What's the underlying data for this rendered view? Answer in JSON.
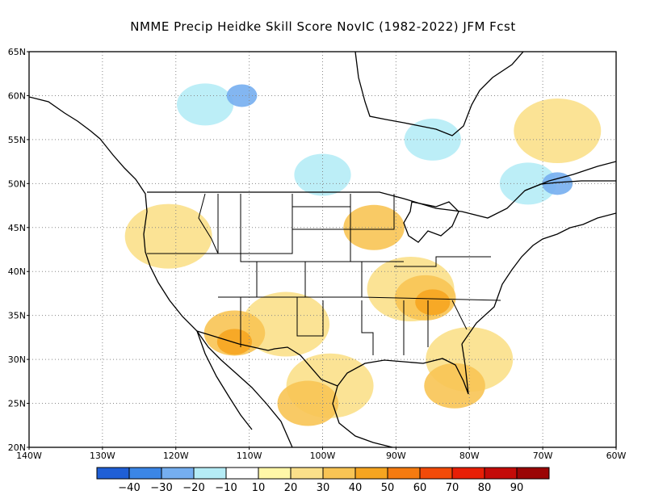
{
  "title": "NMME Precip Heidke Skill Score NovIC (1982-2022) JFM Fcst",
  "map": {
    "lon_range": [
      -140,
      -60
    ],
    "lat_range": [
      20,
      65
    ],
    "lat_ticks": [
      {
        "value": 65,
        "label": "65N"
      },
      {
        "value": 60,
        "label": "60N"
      },
      {
        "value": 55,
        "label": "55N"
      },
      {
        "value": 50,
        "label": "50N"
      },
      {
        "value": 45,
        "label": "45N"
      },
      {
        "value": 40,
        "label": "40N"
      },
      {
        "value": 35,
        "label": "35N"
      },
      {
        "value": 30,
        "label": "30N"
      },
      {
        "value": 25,
        "label": "25N"
      },
      {
        "value": 20,
        "label": "20N"
      }
    ],
    "lon_ticks": [
      {
        "value": -140,
        "label": "140W"
      },
      {
        "value": -130,
        "label": "130W"
      },
      {
        "value": -120,
        "label": "120W"
      },
      {
        "value": -110,
        "label": "110W"
      },
      {
        "value": -100,
        "label": "100W"
      },
      {
        "value": -90,
        "label": "90W"
      },
      {
        "value": -80,
        "label": "80W"
      },
      {
        "value": -70,
        "label": "70W"
      },
      {
        "value": -60,
        "label": "60W"
      }
    ],
    "grid": "dotted"
  },
  "colorbar": {
    "colors": [
      "#1f5fd6",
      "#3b86e6",
      "#75aef0",
      "#b5ecf6",
      "#ffffff",
      "#fff7a8",
      "#fbe08a",
      "#f8c454",
      "#f6a520",
      "#f57b10",
      "#f24a08",
      "#e81f06",
      "#c40b08",
      "#9b0505"
    ],
    "labels": [
      "-40",
      "-30",
      "-20",
      "-10",
      "10",
      "20",
      "30",
      "40",
      "50",
      "60",
      "70",
      "80",
      "90"
    ]
  },
  "features": {
    "skill_regions": [
      {
        "level": "20",
        "lon": -121,
        "lat": 44
      },
      {
        "level": "20",
        "lon": -105,
        "lat": 34
      },
      {
        "level": "20",
        "lon": -88,
        "lat": 38
      },
      {
        "level": "20",
        "lon": -80,
        "lat": 30
      },
      {
        "level": "20",
        "lon": -99,
        "lat": 27
      },
      {
        "level": "20",
        "lon": -68,
        "lat": 56
      },
      {
        "level": "30",
        "lon": -112,
        "lat": 33
      },
      {
        "level": "30",
        "lon": -86,
        "lat": 37
      },
      {
        "level": "30",
        "lon": -93,
        "lat": 45
      },
      {
        "level": "30",
        "lon": -82,
        "lat": 27
      },
      {
        "level": "30",
        "lon": -102,
        "lat": 25
      },
      {
        "level": "40",
        "lon": -112,
        "lat": 32
      },
      {
        "level": "40",
        "lon": -85,
        "lat": 36.5
      },
      {
        "level": "-10",
        "lon": -116,
        "lat": 59
      },
      {
        "level": "-10",
        "lon": -100,
        "lat": 51
      },
      {
        "level": "-10",
        "lon": -85,
        "lat": 55
      },
      {
        "level": "-10",
        "lon": -72,
        "lat": 50
      },
      {
        "level": "-20",
        "lon": -111,
        "lat": 60
      },
      {
        "level": "-20",
        "lon": -68,
        "lat": 50
      }
    ]
  }
}
